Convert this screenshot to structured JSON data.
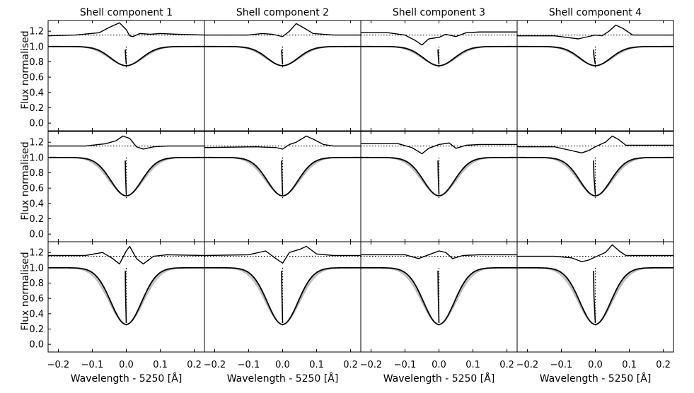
{
  "chart_data": {
    "type": "line",
    "column_titles": [
      "Shell component 1",
      "Shell component 2",
      "Shell component 3",
      "Shell component 4"
    ],
    "xlabel": "Wavelength - 5250 [Å]",
    "ylabel": "Flux normalised",
    "xlim": [
      -0.23,
      0.23
    ],
    "ylim": [
      -0.1,
      1.34
    ],
    "x_ticks": [
      "−0.2",
      "−0.1",
      "0.0",
      "0.1",
      "0.2"
    ],
    "x_tick_values": [
      -0.2,
      -0.1,
      0.0,
      0.1,
      0.2
    ],
    "y_ticks": [
      "0.0",
      "0.2",
      "0.4",
      "0.6",
      "0.8",
      "1.0",
      "1.2"
    ],
    "y_tick_values": [
      0.0,
      0.2,
      0.4,
      0.6,
      0.8,
      1.0,
      1.2
    ],
    "grid": false,
    "reference_line_y": 1.15,
    "panels": [
      {
        "row": 0,
        "col": 0,
        "depth": 0.75,
        "width": 0.045,
        "residual": [
          [
            -0.23,
            1.14
          ],
          [
            -0.15,
            1.15
          ],
          [
            -0.08,
            1.18
          ],
          [
            -0.05,
            1.25
          ],
          [
            -0.02,
            1.31
          ],
          [
            0.0,
            1.22
          ],
          [
            0.01,
            1.14
          ],
          [
            0.02,
            1.13
          ],
          [
            0.04,
            1.17
          ],
          [
            0.07,
            1.16
          ],
          [
            0.1,
            1.17
          ],
          [
            0.15,
            1.16
          ],
          [
            0.23,
            1.15
          ]
        ]
      },
      {
        "row": 0,
        "col": 1,
        "depth": 0.75,
        "width": 0.045,
        "residual": [
          [
            -0.23,
            1.15
          ],
          [
            -0.1,
            1.15
          ],
          [
            -0.06,
            1.17
          ],
          [
            -0.03,
            1.16
          ],
          [
            0.0,
            1.13
          ],
          [
            0.02,
            1.2
          ],
          [
            0.04,
            1.3
          ],
          [
            0.06,
            1.25
          ],
          [
            0.09,
            1.17
          ],
          [
            0.15,
            1.15
          ],
          [
            0.23,
            1.15
          ]
        ]
      },
      {
        "row": 0,
        "col": 2,
        "depth": 0.75,
        "width": 0.045,
        "residual": [
          [
            -0.23,
            1.18
          ],
          [
            -0.15,
            1.18
          ],
          [
            -0.1,
            1.15
          ],
          [
            -0.07,
            1.08
          ],
          [
            -0.05,
            1.02
          ],
          [
            -0.03,
            1.1
          ],
          [
            0.0,
            1.12
          ],
          [
            0.02,
            1.16
          ],
          [
            0.05,
            1.13
          ],
          [
            0.08,
            1.18
          ],
          [
            0.12,
            1.19
          ],
          [
            0.23,
            1.19
          ]
        ]
      },
      {
        "row": 0,
        "col": 3,
        "depth": 0.75,
        "width": 0.045,
        "residual": [
          [
            -0.23,
            1.14
          ],
          [
            -0.12,
            1.14
          ],
          [
            -0.05,
            1.1
          ],
          [
            -0.02,
            1.13
          ],
          [
            0.0,
            1.15
          ],
          [
            0.02,
            1.14
          ],
          [
            0.04,
            1.2
          ],
          [
            0.06,
            1.28
          ],
          [
            0.08,
            1.24
          ],
          [
            0.11,
            1.15
          ],
          [
            0.23,
            1.15
          ]
        ]
      },
      {
        "row": 1,
        "col": 0,
        "depth": 0.5,
        "width": 0.045,
        "residual": [
          [
            -0.23,
            1.15
          ],
          [
            -0.12,
            1.15
          ],
          [
            -0.06,
            1.18
          ],
          [
            -0.03,
            1.22
          ],
          [
            -0.01,
            1.28
          ],
          [
            0.01,
            1.25
          ],
          [
            0.03,
            1.14
          ],
          [
            0.05,
            1.11
          ],
          [
            0.08,
            1.14
          ],
          [
            0.12,
            1.15
          ],
          [
            0.23,
            1.15
          ]
        ]
      },
      {
        "row": 1,
        "col": 1,
        "depth": 0.5,
        "width": 0.045,
        "residual": [
          [
            -0.23,
            1.13
          ],
          [
            -0.08,
            1.14
          ],
          [
            -0.02,
            1.13
          ],
          [
            0.0,
            1.11
          ],
          [
            0.02,
            1.17
          ],
          [
            0.04,
            1.2
          ],
          [
            0.07,
            1.28
          ],
          [
            0.09,
            1.24
          ],
          [
            0.12,
            1.17
          ],
          [
            0.15,
            1.15
          ],
          [
            0.23,
            1.15
          ]
        ]
      },
      {
        "row": 1,
        "col": 2,
        "depth": 0.5,
        "width": 0.045,
        "residual": [
          [
            -0.23,
            1.18
          ],
          [
            -0.12,
            1.18
          ],
          [
            -0.08,
            1.13
          ],
          [
            -0.05,
            1.05
          ],
          [
            -0.03,
            1.12
          ],
          [
            0.0,
            1.17
          ],
          [
            0.03,
            1.19
          ],
          [
            0.05,
            1.12
          ],
          [
            0.08,
            1.16
          ],
          [
            0.12,
            1.17
          ],
          [
            0.23,
            1.17
          ]
        ]
      },
      {
        "row": 1,
        "col": 3,
        "depth": 0.5,
        "width": 0.045,
        "residual": [
          [
            -0.23,
            1.14
          ],
          [
            -0.12,
            1.14
          ],
          [
            -0.08,
            1.1
          ],
          [
            -0.04,
            1.06
          ],
          [
            -0.02,
            1.09
          ],
          [
            0.0,
            1.14
          ],
          [
            0.03,
            1.2
          ],
          [
            0.05,
            1.28
          ],
          [
            0.07,
            1.23
          ],
          [
            0.09,
            1.16
          ],
          [
            0.23,
            1.16
          ]
        ]
      },
      {
        "row": 2,
        "col": 0,
        "depth": 0.26,
        "width": 0.045,
        "residual": [
          [
            -0.23,
            1.16
          ],
          [
            -0.12,
            1.16
          ],
          [
            -0.07,
            1.2
          ],
          [
            -0.04,
            1.12
          ],
          [
            -0.02,
            1.05
          ],
          [
            0.0,
            1.22
          ],
          [
            0.01,
            1.28
          ],
          [
            0.03,
            1.12
          ],
          [
            0.05,
            1.05
          ],
          [
            0.08,
            1.15
          ],
          [
            0.12,
            1.17
          ],
          [
            0.23,
            1.16
          ]
        ]
      },
      {
        "row": 2,
        "col": 1,
        "depth": 0.26,
        "width": 0.045,
        "residual": [
          [
            -0.23,
            1.16
          ],
          [
            -0.1,
            1.17
          ],
          [
            -0.05,
            1.22
          ],
          [
            -0.02,
            1.12
          ],
          [
            0.0,
            1.06
          ],
          [
            0.02,
            1.2
          ],
          [
            0.05,
            1.24
          ],
          [
            0.07,
            1.28
          ],
          [
            0.1,
            1.18
          ],
          [
            0.15,
            1.16
          ],
          [
            0.23,
            1.16
          ]
        ]
      },
      {
        "row": 2,
        "col": 2,
        "depth": 0.26,
        "width": 0.045,
        "residual": [
          [
            -0.23,
            1.17
          ],
          [
            -0.1,
            1.17
          ],
          [
            -0.06,
            1.12
          ],
          [
            -0.03,
            1.17
          ],
          [
            0.0,
            1.22
          ],
          [
            0.02,
            1.2
          ],
          [
            0.04,
            1.12
          ],
          [
            0.07,
            1.16
          ],
          [
            0.12,
            1.17
          ],
          [
            0.23,
            1.17
          ]
        ]
      },
      {
        "row": 2,
        "col": 3,
        "depth": 0.26,
        "width": 0.045,
        "residual": [
          [
            -0.23,
            1.15
          ],
          [
            -0.12,
            1.15
          ],
          [
            -0.07,
            1.13
          ],
          [
            -0.04,
            1.08
          ],
          [
            -0.02,
            1.1
          ],
          [
            0.0,
            1.14
          ],
          [
            0.03,
            1.2
          ],
          [
            0.05,
            1.3
          ],
          [
            0.07,
            1.22
          ],
          [
            0.09,
            1.16
          ],
          [
            0.23,
            1.16
          ]
        ]
      }
    ]
  }
}
